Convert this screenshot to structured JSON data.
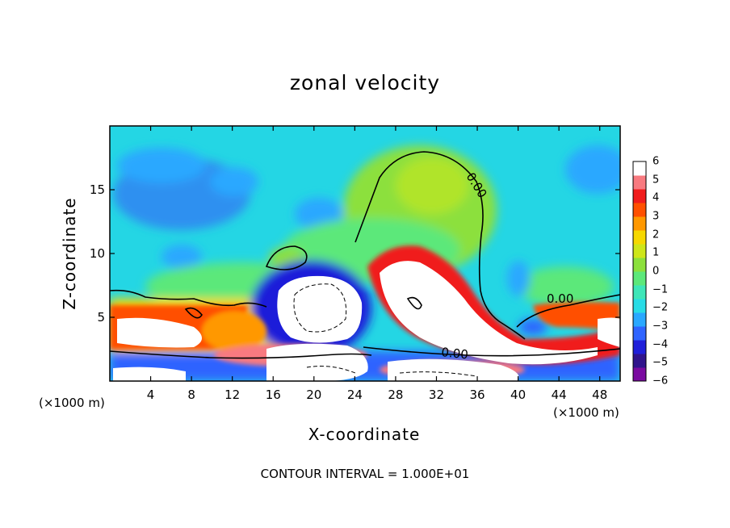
{
  "chart_data": {
    "type": "heatmap",
    "title": "zonal velocity",
    "xlabel": "X-coordinate",
    "ylabel": "Z-coordinate",
    "x_unit_left": "(×1000 m)",
    "x_unit_right": "(×1000 m)",
    "footer": "CONTOUR INTERVAL = 1.000E+01",
    "xlim": [
      0,
      50
    ],
    "ylim": [
      0,
      20
    ],
    "x_ticks": [
      4,
      8,
      12,
      16,
      20,
      24,
      28,
      32,
      36,
      40,
      44,
      48
    ],
    "y_ticks": [
      5,
      10,
      15
    ],
    "colorbar": {
      "range": [
        -6,
        6
      ],
      "ticks": [
        6,
        5,
        4,
        3,
        2,
        1,
        0,
        -1,
        -2,
        -3,
        -4,
        -5,
        -6
      ],
      "colors": [
        "#7a0aa0",
        "#30148c",
        "#1f1fd9",
        "#2f64ff",
        "#2aa8ff",
        "#28dce6",
        "#3ee6b8",
        "#5ce87a",
        "#8ce03c",
        "#cee61a",
        "#f6d800",
        "#ff9800",
        "#ff5000",
        "#f01c1c",
        "#f87a80",
        "#ffffff"
      ]
    },
    "contour_labels": [
      "0.00",
      "0.00",
      "0.00"
    ]
  }
}
